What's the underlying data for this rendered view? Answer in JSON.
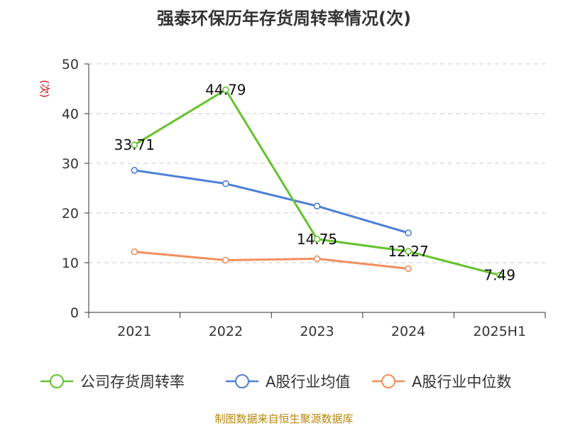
{
  "chart_data": {
    "type": "line",
    "title": "强泰环保历年存货周转率情况(次)",
    "ylabel": "(次)",
    "categories": [
      "2021",
      "2022",
      "2023",
      "2024",
      "2025H1"
    ],
    "ylim": [
      0,
      50
    ],
    "yticks": [
      0,
      10,
      20,
      30,
      40,
      50
    ],
    "grid": true,
    "legend_position": "bottom",
    "series": [
      {
        "name": "公司存货周转率",
        "color": "#66c22e",
        "values": [
          33.71,
          44.79,
          14.75,
          12.27,
          7.49
        ],
        "labels": [
          "33.71",
          "44.79",
          "14.75",
          "12.27",
          "7.49"
        ]
      },
      {
        "name": "A股行业均值",
        "color": "#4d7fd6",
        "values": [
          28.6,
          25.9,
          21.4,
          16.0,
          null
        ]
      },
      {
        "name": "A股行业中位数",
        "color": "#f28f5c",
        "values": [
          12.2,
          10.5,
          10.8,
          8.8,
          null
        ]
      }
    ]
  },
  "source": "制图数据来自恒生聚源数据库"
}
